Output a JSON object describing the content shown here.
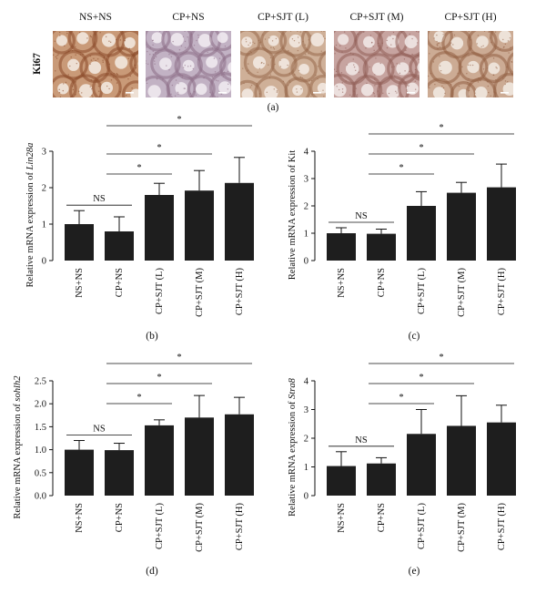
{
  "micrograph_row": {
    "row_label": "Ki67",
    "groups": [
      "NS+NS",
      "CP+NS",
      "CP+SJT (L)",
      "CP+SJT (M)",
      "CP+SJT (H)"
    ],
    "panel_letter": "(a)",
    "colors": {
      "NS+NS": {
        "tissue": "#c99a78",
        "lumen": "#f2e8de",
        "stain": "#8a4a2a"
      },
      "CP+NS": {
        "tissue": "#c2b2c4",
        "lumen": "#efe9ef",
        "stain": "#8d6e86"
      },
      "CP+SJT (L)": {
        "tissue": "#cfb098",
        "lumen": "#f2e9e1",
        "stain": "#97684a"
      },
      "CP+SJT (M)": {
        "tissue": "#c7a4a0",
        "lumen": "#f0e7e4",
        "stain": "#8f5c55"
      },
      "CP+SJT (H)": {
        "tissue": "#ccab94",
        "lumen": "#f1e8df",
        "stain": "#925f42"
      }
    }
  },
  "chart_data": [
    {
      "panel_letter": "(b)",
      "type": "bar",
      "categories": [
        "NS+NS",
        "CP+NS",
        "CP+SJT (L)",
        "CP+SJT (M)",
        "CP+SJT (H)"
      ],
      "values": [
        1.0,
        0.8,
        1.8,
        1.92,
        2.13
      ],
      "errors": [
        0.37,
        0.4,
        0.32,
        0.55,
        0.7
      ],
      "ylabel_prefix": "Relative mRNA expression of ",
      "ylabel_gene": "Lin28a",
      "ylim": [
        0,
        3
      ],
      "yticks": [
        "0",
        "1",
        "2",
        "3"
      ],
      "significance": [
        {
          "from": 0,
          "to": 1,
          "label": "NS"
        },
        {
          "from": 1,
          "to": 2,
          "label": "*"
        },
        {
          "from": 1,
          "to": 3,
          "label": "*"
        },
        {
          "from": 1,
          "to": 4,
          "label": "*"
        }
      ],
      "bar_color": "#1e1e1e"
    },
    {
      "panel_letter": "(c)",
      "type": "bar",
      "categories": [
        "NS+NS",
        "CP+NS",
        "CP+SJT (L)",
        "CP+SJT (M)",
        "CP+SJT (H)"
      ],
      "values": [
        1.0,
        0.98,
        2.0,
        2.48,
        2.68
      ],
      "errors": [
        0.2,
        0.17,
        0.52,
        0.38,
        0.85
      ],
      "ylabel_prefix": "Relative mRNA expression of Kit",
      "ylabel_gene": "",
      "ylim": [
        0,
        4
      ],
      "yticks": [
        "0",
        "1",
        "2",
        "3",
        "4"
      ],
      "significance": [
        {
          "from": 0,
          "to": 1,
          "label": "NS"
        },
        {
          "from": 1,
          "to": 2,
          "label": "*"
        },
        {
          "from": 1,
          "to": 3,
          "label": "*"
        },
        {
          "from": 1,
          "to": 4,
          "label": "*"
        }
      ],
      "bar_color": "#1e1e1e"
    },
    {
      "panel_letter": "(d)",
      "type": "bar",
      "categories": [
        "NS+NS",
        "CP+NS",
        "CP+SJT (L)",
        "CP+SJT (M)",
        "CP+SJT (H)"
      ],
      "values": [
        1.0,
        0.99,
        1.53,
        1.7,
        1.77
      ],
      "errors": [
        0.2,
        0.15,
        0.12,
        0.48,
        0.37
      ],
      "ylabel_prefix": "Relative mRNA expression of ",
      "ylabel_gene": "sohlh2",
      "ylim": [
        0,
        2.5
      ],
      "yticks": [
        "0.0",
        "0.5",
        "1.0",
        "1.5",
        "2.0",
        "2.5"
      ],
      "significance": [
        {
          "from": 0,
          "to": 1,
          "label": "NS"
        },
        {
          "from": 1,
          "to": 2,
          "label": "*"
        },
        {
          "from": 1,
          "to": 3,
          "label": "*"
        },
        {
          "from": 1,
          "to": 4,
          "label": "*"
        }
      ],
      "bar_color": "#1e1e1e"
    },
    {
      "panel_letter": "(e)",
      "type": "bar",
      "categories": [
        "NS+NS",
        "CP+NS",
        "CP+SJT (L)",
        "CP+SJT (M)",
        "CP+SJT (H)"
      ],
      "values": [
        1.03,
        1.12,
        2.15,
        2.43,
        2.55
      ],
      "errors": [
        0.5,
        0.2,
        0.85,
        1.05,
        0.6
      ],
      "ylabel_prefix": "Relative mRNA expression of ",
      "ylabel_gene": "Stra8",
      "ylim": [
        0,
        4
      ],
      "yticks": [
        "0",
        "1",
        "2",
        "3",
        "4"
      ],
      "significance": [
        {
          "from": 0,
          "to": 1,
          "label": "NS"
        },
        {
          "from": 1,
          "to": 2,
          "label": "*"
        },
        {
          "from": 1,
          "to": 3,
          "label": "*"
        },
        {
          "from": 1,
          "to": 4,
          "label": "*"
        }
      ],
      "bar_color": "#1e1e1e"
    }
  ]
}
